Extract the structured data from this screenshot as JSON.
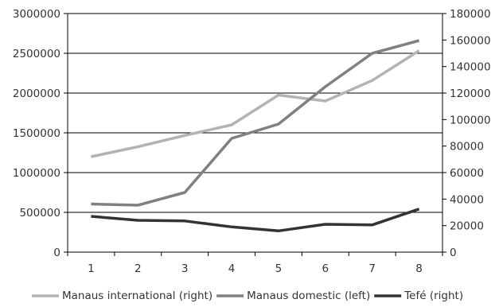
{
  "chart_data": {
    "type": "line",
    "title": "",
    "xlabel": "",
    "ylabel": "",
    "x": [
      1,
      2,
      3,
      4,
      5,
      6,
      7,
      8
    ],
    "xticks": [
      "1",
      "2",
      "3",
      "4",
      "5",
      "6",
      "7",
      "8"
    ],
    "y_left": {
      "ylim": [
        0,
        3000000
      ],
      "ticks": [
        "0",
        "500000",
        "1000000",
        "1500000",
        "2000000",
        "2500000",
        "3000000"
      ]
    },
    "y_right": {
      "ylim": [
        0,
        180000
      ],
      "ticks": [
        "0",
        "20000",
        "40000",
        "60000",
        "80000",
        "100000",
        "120000",
        "140000",
        "160000",
        "180000"
      ]
    },
    "grid": "horizontal",
    "legend_position": "bottom",
    "series": [
      {
        "name": "Manaus international (right)",
        "axis": "right",
        "color": "#b3b3b3",
        "values": [
          72000,
          79500,
          88000,
          96000,
          118500,
          114000,
          129500,
          152000
        ]
      },
      {
        "name": "Manaus domestic (left)",
        "axis": "left",
        "color": "#808080",
        "values": [
          605000,
          590000,
          750000,
          1430000,
          1610000,
          2080000,
          2500000,
          2660000
        ]
      },
      {
        "name": "Tefé (right)",
        "axis": "right",
        "color": "#333333",
        "values": [
          27000,
          24000,
          23500,
          19000,
          16000,
          21000,
          20500,
          32500
        ]
      }
    ]
  }
}
